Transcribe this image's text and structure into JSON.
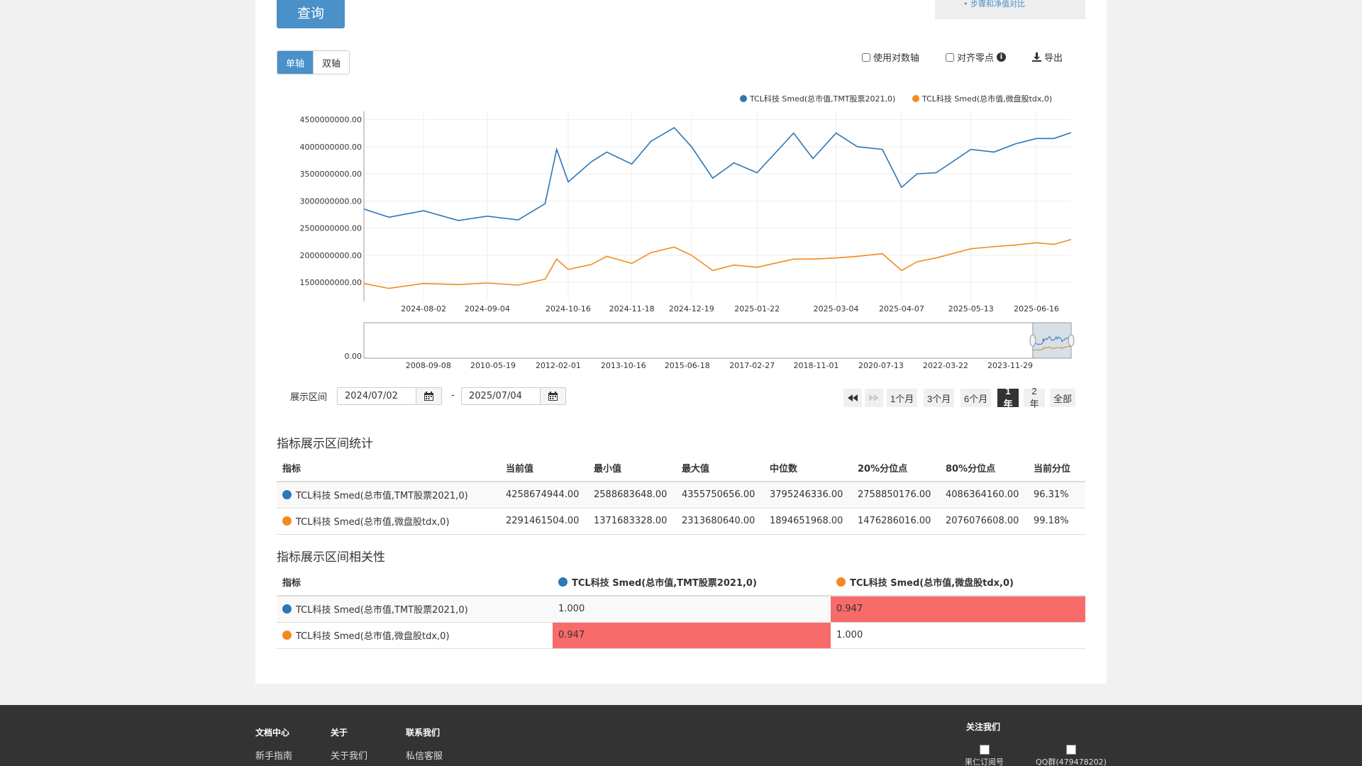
{
  "top": {
    "query_label": "查询",
    "side_link": "• 步骤和净值对比"
  },
  "axis_toggle": {
    "single": "单轴",
    "dual": "双轴"
  },
  "options": {
    "log_axis": "使用对数轴",
    "align_zero": "对齐零点",
    "align_zero_info": "i",
    "export": "导出"
  },
  "chart_data": {
    "type": "line",
    "legend_position": "top-right",
    "series": [
      {
        "name": "TCL科技 Smed(总市值,TMT股票2021,0)",
        "color": "#2e76b4",
        "x": [
          "2024-07-02",
          "2024-07-15",
          "2024-08-02",
          "2024-08-20",
          "2024-09-04",
          "2024-09-20",
          "2024-10-04",
          "2024-10-10",
          "2024-10-16",
          "2024-10-28",
          "2024-11-05",
          "2024-11-18",
          "2024-11-28",
          "2024-12-10",
          "2024-12-19",
          "2024-12-30",
          "2025-01-10",
          "2025-01-22",
          "2025-02-10",
          "2025-02-20",
          "2025-03-04",
          "2025-03-15",
          "2025-03-28",
          "2025-04-07",
          "2025-04-15",
          "2025-04-25",
          "2025-05-13",
          "2025-05-25",
          "2025-06-05",
          "2025-06-16",
          "2025-06-25",
          "2025-07-04"
        ],
        "values": [
          2850000000,
          2700000000,
          2820000000,
          2640000000,
          2720000000,
          2650000000,
          2950000000,
          3950000000,
          3350000000,
          3720000000,
          3900000000,
          3680000000,
          4100000000,
          4350000000,
          4000000000,
          3420000000,
          3700000000,
          3520000000,
          4250000000,
          3780000000,
          4250000000,
          4000000000,
          3950000000,
          3250000000,
          3500000000,
          3520000000,
          3950000000,
          3900000000,
          4050000000,
          4150000000,
          4150000000,
          4258674944
        ]
      },
      {
        "name": "TCL科技 Smed(总市值,微盘股tdx,0)",
        "color": "#f28b1f",
        "x": [
          "2024-07-02",
          "2024-07-15",
          "2024-08-02",
          "2024-08-20",
          "2024-09-04",
          "2024-09-20",
          "2024-10-04",
          "2024-10-10",
          "2024-10-16",
          "2024-10-28",
          "2024-11-05",
          "2024-11-18",
          "2024-11-28",
          "2024-12-10",
          "2024-12-19",
          "2024-12-30",
          "2025-01-10",
          "2025-01-22",
          "2025-02-10",
          "2025-02-20",
          "2025-03-04",
          "2025-03-15",
          "2025-03-28",
          "2025-04-07",
          "2025-04-15",
          "2025-04-25",
          "2025-05-13",
          "2025-05-25",
          "2025-06-05",
          "2025-06-16",
          "2025-06-25",
          "2025-07-04"
        ],
        "values": [
          1480000000,
          1390000000,
          1480000000,
          1460000000,
          1490000000,
          1450000000,
          1560000000,
          1930000000,
          1740000000,
          1830000000,
          1980000000,
          1850000000,
          2050000000,
          2150000000,
          2000000000,
          1720000000,
          1820000000,
          1780000000,
          1930000000,
          1930000000,
          1950000000,
          1980000000,
          2030000000,
          1720000000,
          1880000000,
          1950000000,
          2120000000,
          2160000000,
          2190000000,
          2230000000,
          2200000000,
          2291461504
        ]
      }
    ],
    "y_ticks": [
      "4500000000.00",
      "4000000000.00",
      "3500000000.00",
      "3000000000.00",
      "2500000000.00",
      "2000000000.00",
      "1500000000.00"
    ],
    "y_tick_values": [
      4500000000,
      4000000000,
      3500000000,
      3000000000,
      2500000000,
      2000000000,
      1500000000
    ],
    "ylim": [
      1150000000,
      4650000000
    ],
    "x_ticks": [
      "2024-08-02",
      "2024-09-04",
      "2024-10-16",
      "2024-11-18",
      "2024-12-19",
      "2025-01-22",
      "2025-03-04",
      "2025-04-07",
      "2025-05-13",
      "2025-06-16"
    ],
    "xlim": [
      "2024-07-02",
      "2025-07-04"
    ],
    "grid": true,
    "navigator": {
      "y_label": "0.00",
      "x_ticks": [
        "2008-09-08",
        "2010-05-19",
        "2012-02-01",
        "2013-10-16",
        "2015-06-18",
        "2017-02-27",
        "2018-11-01",
        "2020-07-13",
        "2022-03-22",
        "2023-11-29"
      ],
      "xlim": [
        "2007-01-01",
        "2025-07-04"
      ],
      "selected_range": [
        "2024-07-02",
        "2025-07-04"
      ]
    }
  },
  "range": {
    "label": "展示区间",
    "start": "2024/07/02",
    "sep": "-",
    "end": "2025/07/04",
    "buttons": [
      "1个月",
      "3个月",
      "6个月",
      "1年",
      "2年",
      "全部"
    ],
    "active": "1年"
  },
  "stats": {
    "title": "指标展示区间统计",
    "headers": [
      "指标",
      "当前值",
      "最小值",
      "最大值",
      "中位数",
      "20%分位点",
      "80%分位点",
      "当前分位"
    ],
    "rows": [
      {
        "name": "TCL科技 Smed(总市值,TMT股票2021,0)",
        "color": "#2e76b4",
        "cells": [
          "4258674944.00",
          "2588683648.00",
          "4355750656.00",
          "3795246336.00",
          "2758850176.00",
          "4086364160.00",
          "96.31%"
        ]
      },
      {
        "name": "TCL科技 Smed(总市值,微盘股tdx,0)",
        "color": "#f28b1f",
        "cells": [
          "2291461504.00",
          "1371683328.00",
          "2313680640.00",
          "1894651968.00",
          "1476286016.00",
          "2076076608.00",
          "99.18%"
        ]
      }
    ]
  },
  "corr": {
    "title": "指标展示区间相关性",
    "header_label": "指标",
    "col1": "TCL科技 Smed(总市值,TMT股票2021,0)",
    "col2": "TCL科技 Smed(总市值,微盘股tdx,0)",
    "rows": [
      {
        "name": "TCL科技 Smed(总市值,TMT股票2021,0)",
        "v1": "1.000",
        "v2": "0.947"
      },
      {
        "name": "TCL科技 Smed(总市值,微盘股tdx,0)",
        "v1": "0.947",
        "v2": "1.000"
      }
    ]
  },
  "footer": {
    "col1_title": "文档中心",
    "col1_link": "新手指南",
    "col2_title": "关于",
    "col2_link": "关于我们",
    "col3_title": "联系我们",
    "col3_link": "私信客服",
    "follow_title": "关注我们",
    "qr1": "果仁订阅号",
    "qr2": "QQ群(479478202)"
  }
}
